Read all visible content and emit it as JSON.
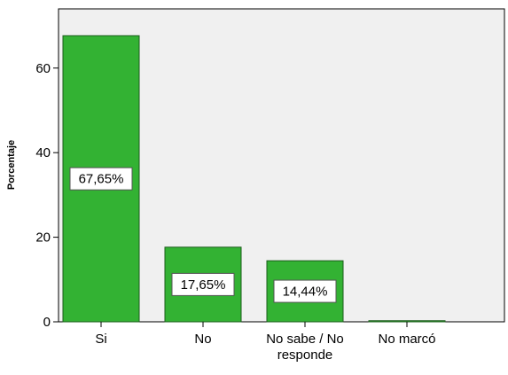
{
  "chart_data": {
    "type": "bar",
    "categories": [
      "Si",
      "No",
      "No sabe / No\nresponde",
      "No marcó"
    ],
    "values": [
      67.65,
      17.65,
      14.44,
      0.26
    ],
    "data_labels": [
      "67,65%",
      "17,65%",
      "14,44%",
      ""
    ],
    "title": "",
    "xlabel": "",
    "ylabel": "Porcentaje",
    "ylim": [
      0,
      74
    ],
    "yticks": [
      0,
      20,
      40,
      60
    ],
    "ytick_labels": [
      "0",
      "20",
      "40",
      "60"
    ],
    "grid": false,
    "colors": {
      "bar_fill": "#33b233",
      "bar_stroke": "#1a5c1a",
      "plot_background": "#f0f0f0",
      "axis": "#000000",
      "label_box_fill": "#ffffff"
    }
  }
}
